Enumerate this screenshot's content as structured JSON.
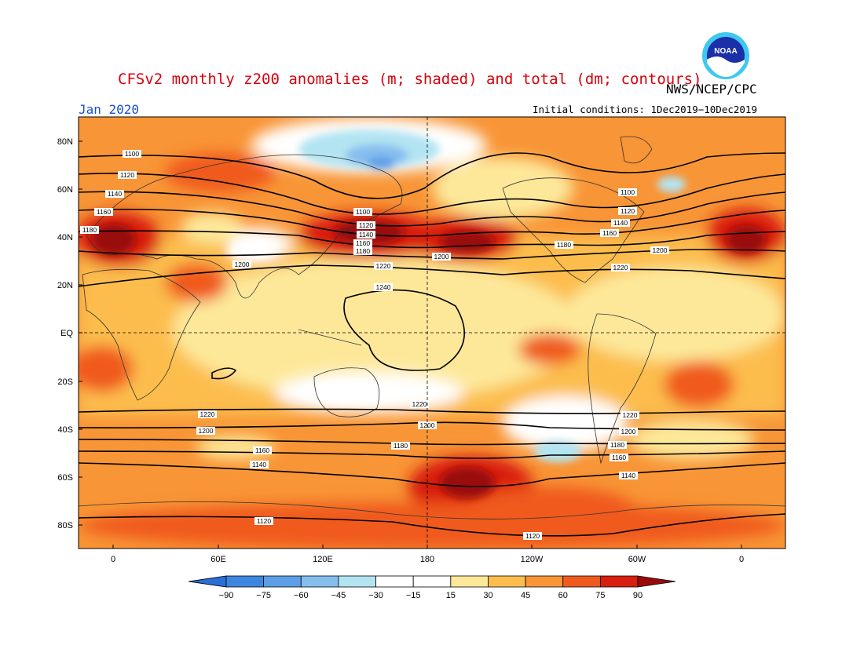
{
  "header": {
    "title": "CFSv2 monthly z200 anomalies (m; shaded) and total (dm; contours)",
    "agency": "NWS/NCEP/CPC",
    "month": "Jan 2020",
    "initial_conditions": "Initial conditions: 1Dec2019−10Dec2019",
    "logo_text": "NOAA"
  },
  "axes": {
    "lat_labels": [
      "80N",
      "60N",
      "40N",
      "20N",
      "EQ",
      "20S",
      "40S",
      "60S",
      "80S"
    ],
    "lon_labels": [
      "0",
      "60E",
      "120E",
      "180",
      "120W",
      "60W",
      "0"
    ]
  },
  "colorbar": {
    "colors": [
      "#2a6fd6",
      "#3d86e0",
      "#5d9ee6",
      "#86bdef",
      "#b3e4f2",
      "#ffffff",
      "#ffffff",
      "#fde89a",
      "#fcbd4e",
      "#f89536",
      "#f05a1e",
      "#d81e10",
      "#9a0a0a"
    ],
    "labels": [
      "−90",
      "−75",
      "−60",
      "−45",
      "−30",
      "−15",
      "15",
      "30",
      "45",
      "60",
      "75",
      "90"
    ]
  },
  "contour_labels": [
    "1100",
    "1120",
    "1140",
    "1160",
    "1180",
    "1200",
    "1220",
    "1240"
  ],
  "colors": {
    "title": "#d8000c",
    "month": "#1a4fd6",
    "background_anomaly": "#f89536"
  }
}
